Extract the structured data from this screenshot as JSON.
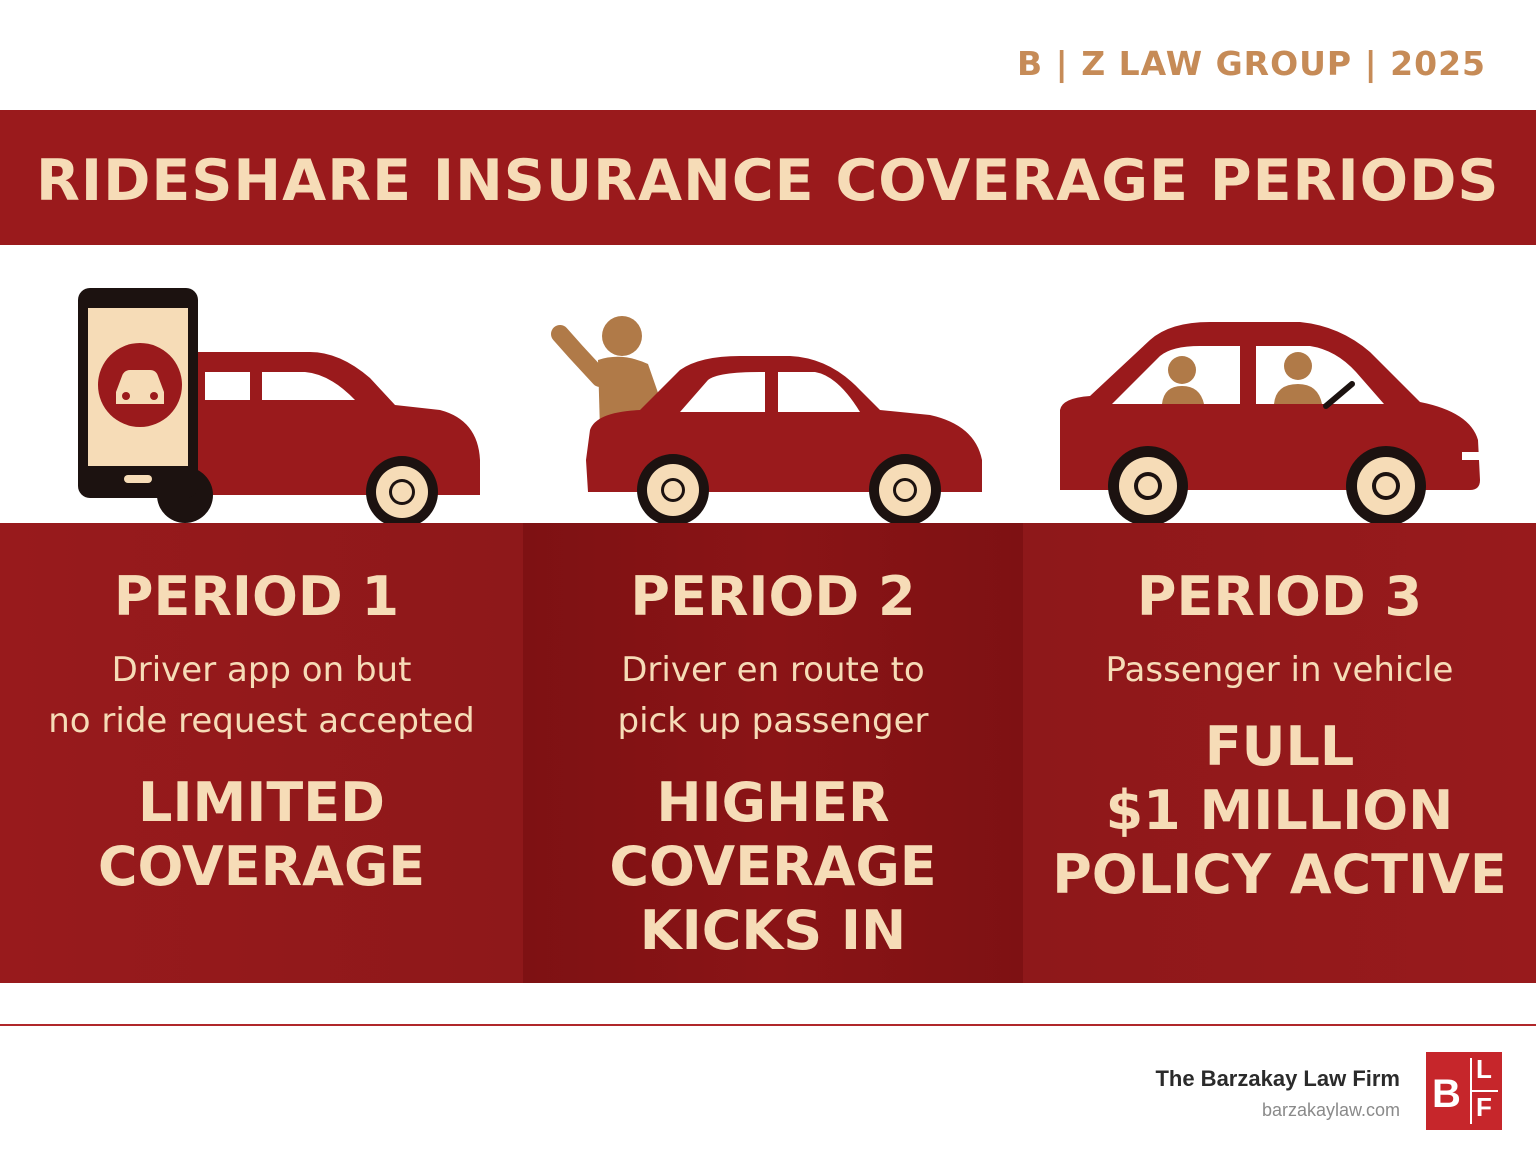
{
  "header": {
    "tag": "B | Z LAW GROUP  |  2025",
    "title": "RIDESHARE INSURANCE COVERAGE PERIODS"
  },
  "periods": [
    {
      "label": "PERIOD 1",
      "description_lines": [
        "Driver app on but",
        "no ride request accepted"
      ],
      "coverage_lines": [
        "LIMITED",
        "COVERAGE"
      ]
    },
    {
      "label": "PERIOD 2",
      "description_lines": [
        "Driver en route to",
        "pick up passenger"
      ],
      "coverage_lines": [
        "HIGHER",
        "COVERAGE",
        "KICKS IN"
      ]
    },
    {
      "label": "PERIOD 3",
      "description_lines": [
        "Passenger in vehicle"
      ],
      "coverage_lines": [
        "FULL",
        "$1 MILLION",
        "POLICY ACTIVE"
      ]
    }
  ],
  "footer": {
    "firm_name": "The Barzakay Law Firm",
    "firm_url": "barzakaylaw.com",
    "logo_letters": [
      "B",
      "L",
      "F"
    ]
  },
  "colors": {
    "brand_red": "#9a1a1c",
    "cream_text": "#f6dcb7",
    "accent_tan": "#c68b57",
    "logo_red": "#c6262b"
  },
  "icons": [
    "smartphone-icon",
    "car-icon",
    "waving-person-icon",
    "passenger-car-icon"
  ]
}
